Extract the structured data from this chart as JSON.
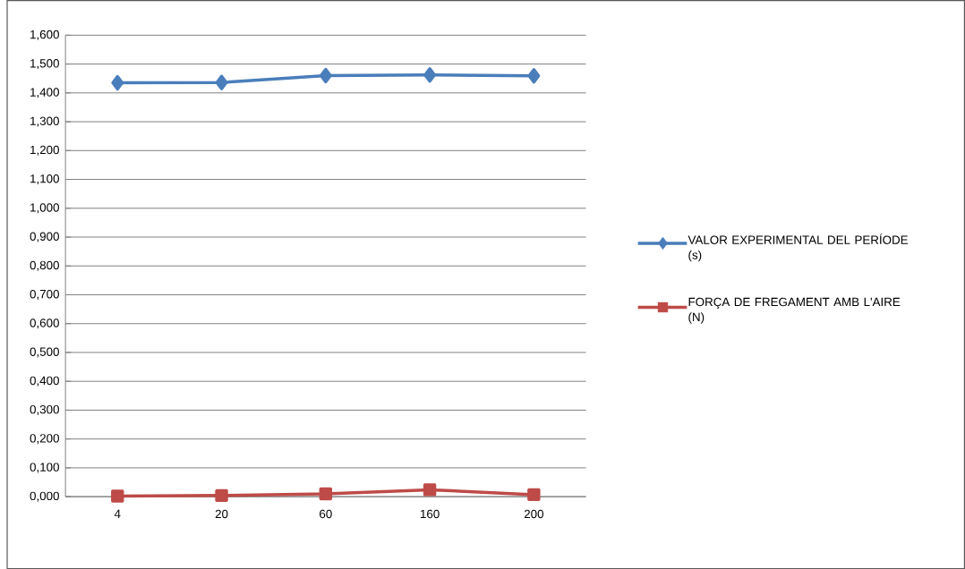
{
  "chart_data": {
    "type": "line",
    "categories": [
      "4",
      "20",
      "60",
      "160",
      "200"
    ],
    "series": [
      {
        "name": "VALOR EXPERIMENTAL DEL PERÍODE (s)",
        "color": "#4a7ebb",
        "marker": "diamond",
        "values": [
          1.435,
          1.436,
          1.46,
          1.462,
          1.459
        ]
      },
      {
        "name": "FORÇA DE FREGAMENT AMB L'AIRE (N)",
        "color": "#be4b48",
        "marker": "square",
        "values": [
          0.002,
          0.004,
          0.01,
          0.024,
          0.007
        ]
      }
    ],
    "ylim": [
      0,
      1.6
    ],
    "yticks": [
      {
        "value": 0,
        "label": "0,000"
      },
      {
        "value": 0.1,
        "label": "0,100"
      },
      {
        "value": 0.2,
        "label": "0,200"
      },
      {
        "value": 0.3,
        "label": "0,300"
      },
      {
        "value": 0.4,
        "label": "0,400"
      },
      {
        "value": 0.5,
        "label": "0,500"
      },
      {
        "value": 0.6,
        "label": "0,600"
      },
      {
        "value": 0.7,
        "label": "0,700"
      },
      {
        "value": 0.8,
        "label": "0,800"
      },
      {
        "value": 0.9,
        "label": "0,900"
      },
      {
        "value": 1.0,
        "label": "1,000"
      },
      {
        "value": 1.1,
        "label": "1,100"
      },
      {
        "value": 1.2,
        "label": "1,200"
      },
      {
        "value": 1.3,
        "label": "1,300"
      },
      {
        "value": 1.4,
        "label": "1,400"
      },
      {
        "value": 1.5,
        "label": "1,500"
      },
      {
        "value": 1.6,
        "label": "1,600"
      }
    ],
    "grid": "y",
    "legend": "right",
    "line_style": "solid"
  }
}
